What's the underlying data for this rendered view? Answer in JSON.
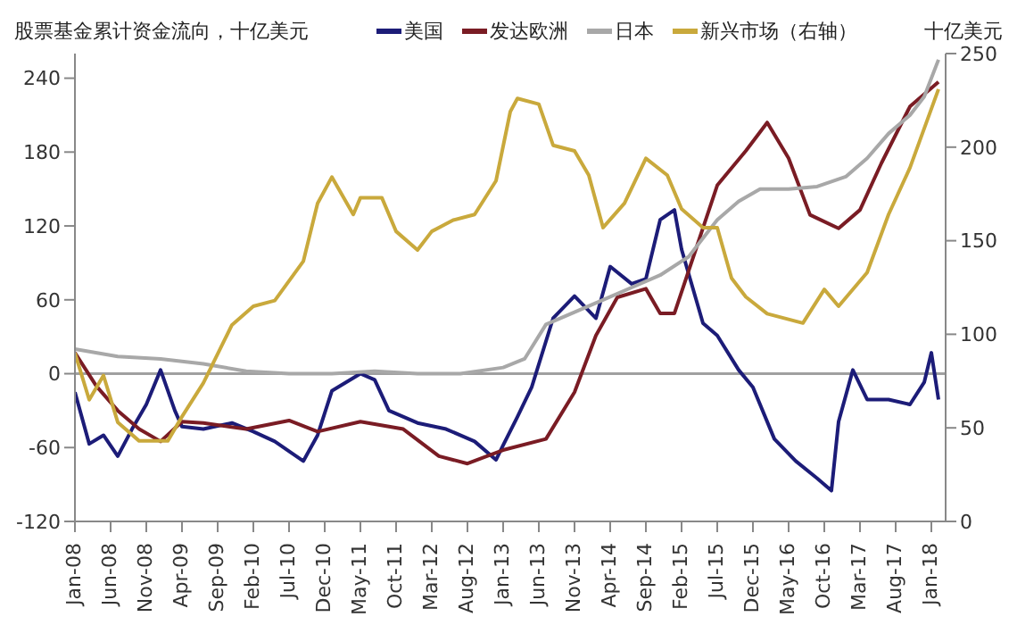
{
  "chart_data": {
    "type": "line",
    "ylabel": "股票基金累计资金流向，十亿美元",
    "y2label": "十亿美元",
    "legend": "top",
    "marker": "none",
    "line_style": "solid",
    "xlim": [
      "2008-01",
      "2018-03"
    ],
    "xticks": [
      {
        "value": "2008-01",
        "label": "Jan-08"
      },
      {
        "value": "2008-06",
        "label": "Jun-08"
      },
      {
        "value": "2008-11",
        "label": "Nov-08"
      },
      {
        "value": "2009-04",
        "label": "Apr-09"
      },
      {
        "value": "2009-09",
        "label": "Sep-09"
      },
      {
        "value": "2010-02",
        "label": "Feb-10"
      },
      {
        "value": "2010-07",
        "label": "Jul-10"
      },
      {
        "value": "2010-12",
        "label": "Dec-10"
      },
      {
        "value": "2011-05",
        "label": "May-11"
      },
      {
        "value": "2011-10",
        "label": "Oct-11"
      },
      {
        "value": "2012-03",
        "label": "Mar-12"
      },
      {
        "value": "2012-08",
        "label": "Aug-12"
      },
      {
        "value": "2013-01",
        "label": "Jan-13"
      },
      {
        "value": "2013-06",
        "label": "Jun-13"
      },
      {
        "value": "2013-11",
        "label": "Nov-13"
      },
      {
        "value": "2014-04",
        "label": "Apr-14"
      },
      {
        "value": "2014-09",
        "label": "Sep-14"
      },
      {
        "value": "2015-02",
        "label": "Feb-15"
      },
      {
        "value": "2015-07",
        "label": "Jul-15"
      },
      {
        "value": "2015-12",
        "label": "Dec-15"
      },
      {
        "value": "2016-05",
        "label": "May-16"
      },
      {
        "value": "2016-10",
        "label": "Oct-16"
      },
      {
        "value": "2017-03",
        "label": "Mar-17"
      },
      {
        "value": "2017-08",
        "label": "Aug-17"
      },
      {
        "value": "2018-01",
        "label": "Jan-18"
      }
    ],
    "ylim": [
      -120,
      260
    ],
    "yticks": [
      -120,
      -60,
      0,
      60,
      120,
      180,
      240
    ],
    "y2lim": [
      0,
      250
    ],
    "y2ticks": [
      0,
      50,
      100,
      150,
      200,
      250
    ],
    "ref_lines": [
      {
        "axis": "y",
        "value": 0,
        "color": "#a0a0a0"
      }
    ],
    "series": [
      {
        "name": "美国",
        "color": "#1c1c78",
        "x": [
          "2008-01",
          "2008-03",
          "2008-05",
          "2008-07",
          "2008-09",
          "2008-11",
          "2009-01",
          "2009-03",
          "2009-04",
          "2009-07",
          "2009-11",
          "2010-02",
          "2010-05",
          "2010-09",
          "2010-11",
          "2011-01",
          "2011-05",
          "2011-07",
          "2011-09",
          "2012-01",
          "2012-05",
          "2012-09",
          "2012-12",
          "2013-01",
          "2013-03",
          "2013-05",
          "2013-08",
          "2013-11",
          "2014-02",
          "2014-04",
          "2014-07",
          "2014-09",
          "2014-11",
          "2015-01",
          "2015-02",
          "2015-05",
          "2015-07",
          "2015-10",
          "2015-12",
          "2016-03",
          "2016-06",
          "2016-09",
          "2016-11",
          "2016-12",
          "2017-02",
          "2017-04",
          "2017-07",
          "2017-10",
          "2017-12",
          "2018-01",
          "2018-02"
        ],
        "values": [
          -15,
          -57,
          -50,
          -67,
          -45,
          -25,
          3,
          -30,
          -43,
          -45,
          -40,
          -47,
          -55,
          -71,
          -50,
          -14,
          0,
          -5,
          -30,
          -40,
          -45,
          -55,
          -70,
          -58,
          -35,
          -11,
          45,
          63,
          45,
          87,
          73,
          77,
          125,
          133,
          101,
          41,
          31,
          3,
          -11,
          -53,
          -71,
          -85,
          -95,
          -39,
          3,
          -21,
          -21,
          -25,
          -7,
          17,
          -21
        ]
      },
      {
        "name": "发达欧洲",
        "color": "#7a1c24",
        "x": [
          "2008-01",
          "2008-04",
          "2008-07",
          "2008-10",
          "2009-01",
          "2009-04",
          "2009-07",
          "2010-01",
          "2010-07",
          "2010-11",
          "2011-05",
          "2011-11",
          "2012-04",
          "2012-08",
          "2013-01",
          "2013-07",
          "2013-11",
          "2014-02",
          "2014-05",
          "2014-09",
          "2014-11",
          "2015-01",
          "2015-04",
          "2015-07",
          "2015-11",
          "2016-02",
          "2016-05",
          "2016-08",
          "2016-12",
          "2017-03",
          "2017-06",
          "2017-10",
          "2018-02"
        ],
        "values": [
          17,
          -10,
          -30,
          -45,
          -55,
          -39,
          -40,
          -45,
          -38,
          -47,
          -39,
          -45,
          -67,
          -73,
          -62,
          -53,
          -15,
          31,
          62,
          69,
          49,
          49,
          101,
          153,
          181,
          204,
          175,
          129,
          118,
          133,
          171,
          217,
          237
        ]
      },
      {
        "name": "日本",
        "color": "#a8a8a8",
        "x": [
          "2008-01",
          "2008-07",
          "2009-01",
          "2009-07",
          "2010-01",
          "2010-07",
          "2011-01",
          "2011-07",
          "2012-01",
          "2012-07",
          "2013-01",
          "2013-04",
          "2013-07",
          "2013-11",
          "2014-03",
          "2014-07",
          "2014-11",
          "2015-03",
          "2015-05",
          "2015-07",
          "2015-10",
          "2016-01",
          "2016-05",
          "2016-09",
          "2017-01",
          "2017-04",
          "2017-07",
          "2017-10",
          "2017-12",
          "2018-02"
        ],
        "values": [
          20,
          14,
          12,
          8,
          2,
          0,
          0,
          2,
          0,
          0,
          5,
          12,
          40,
          50,
          60,
          70,
          80,
          95,
          110,
          125,
          140,
          150,
          150,
          152,
          160,
          175,
          195,
          210,
          225,
          255
        ]
      },
      {
        "name": "新兴市场（右轴）",
        "color": "#c9a93c",
        "axis": "y2",
        "x": [
          "2008-01",
          "2008-03",
          "2008-05",
          "2008-07",
          "2008-10",
          "2009-02",
          "2009-04",
          "2009-07",
          "2009-11",
          "2010-02",
          "2010-05",
          "2010-09",
          "2010-11",
          "2011-01",
          "2011-04",
          "2011-05",
          "2011-08",
          "2011-10",
          "2012-01",
          "2012-03",
          "2012-06",
          "2012-09",
          "2012-12",
          "2013-02",
          "2013-03",
          "2013-06",
          "2013-08",
          "2013-11",
          "2014-01",
          "2014-03",
          "2014-06",
          "2014-09",
          "2014-12",
          "2015-02",
          "2015-05",
          "2015-07",
          "2015-09",
          "2015-11",
          "2016-02",
          "2016-07",
          "2016-10",
          "2016-12",
          "2017-04",
          "2017-07",
          "2017-10",
          "2018-02"
        ],
        "values": [
          90,
          65,
          78,
          53,
          43,
          43,
          56,
          74,
          105,
          115,
          118,
          139,
          170,
          184,
          164,
          173,
          173,
          155,
          145,
          155,
          161,
          164,
          182,
          219,
          226,
          223,
          201,
          198,
          185,
          157,
          170,
          194,
          185,
          167,
          157,
          157,
          130,
          120,
          111,
          106,
          124,
          115,
          133,
          164,
          189,
          231
        ]
      }
    ]
  }
}
